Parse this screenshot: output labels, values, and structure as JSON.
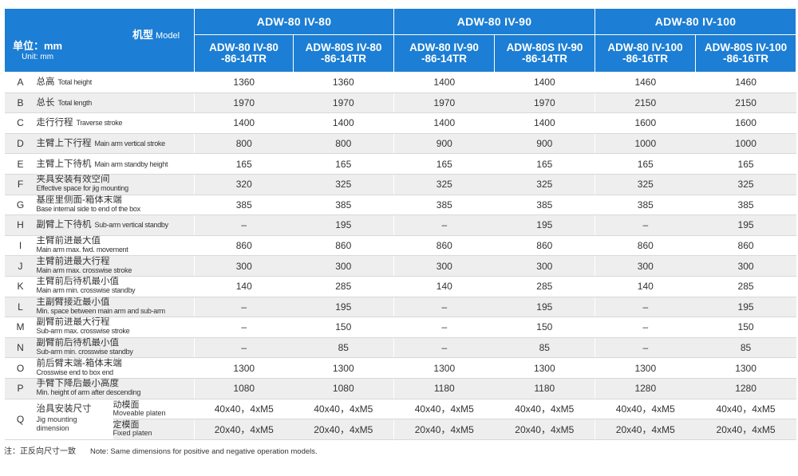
{
  "header": {
    "model_zh": "机型",
    "model_en": "Model",
    "unit_zh": "单位：mm",
    "unit_en": "Unit: mm",
    "groups": [
      "ADW-80 IV-80",
      "ADW-80 IV-90",
      "ADW-80 IV-100"
    ],
    "models": [
      [
        "ADW-80 IV-80",
        "-86-14TR"
      ],
      [
        "ADW-80S IV-80",
        "-86-14TR"
      ],
      [
        "ADW-80 IV-90",
        "-86-14TR"
      ],
      [
        "ADW-80S IV-90",
        "-86-14TR"
      ],
      [
        "ADW-80 IV-100",
        "-86-16TR"
      ],
      [
        "ADW-80S IV-100",
        "-86-16TR"
      ]
    ]
  },
  "rows": [
    {
      "id": "A",
      "zh": "总高",
      "en": "Total height",
      "values": [
        "1360",
        "1360",
        "1400",
        "1400",
        "1460",
        "1460"
      ]
    },
    {
      "id": "B",
      "zh": "总长",
      "en": "Total length",
      "values": [
        "1970",
        "1970",
        "1970",
        "1970",
        "2150",
        "2150"
      ]
    },
    {
      "id": "C",
      "zh": "走行行程",
      "en": "Traverse stroke",
      "values": [
        "1400",
        "1400",
        "1400",
        "1400",
        "1600",
        "1600"
      ]
    },
    {
      "id": "D",
      "zh": "主臂上下行程",
      "en": "Main arm vertical stroke",
      "values": [
        "800",
        "800",
        "900",
        "900",
        "1000",
        "1000"
      ]
    },
    {
      "id": "E",
      "zh": "主臂上下待机",
      "en": "Main arm standby height",
      "values": [
        "165",
        "165",
        "165",
        "165",
        "165",
        "165"
      ]
    },
    {
      "id": "F",
      "zh": "夹具安装有效空间",
      "en": "Effective space for jig mounting",
      "values": [
        "320",
        "325",
        "325",
        "325",
        "325",
        "325"
      ]
    },
    {
      "id": "G",
      "zh": "基座里侧面-箱体末端",
      "en": "Base internal side to end of the box",
      "values": [
        "385",
        "385",
        "385",
        "385",
        "385",
        "385"
      ]
    },
    {
      "id": "H",
      "zh": "副臂上下待机",
      "en": "Sub-arm vertical standby",
      "values": [
        "–",
        "195",
        "–",
        "195",
        "–",
        "195"
      ]
    },
    {
      "id": "I",
      "zh": "主臂前进最大值",
      "en": "Main arm max. fwd. movement",
      "values": [
        "860",
        "860",
        "860",
        "860",
        "860",
        "860"
      ]
    },
    {
      "id": "J",
      "zh": "主臂前进最大行程",
      "en": "Main arm max. crosswise stroke",
      "values": [
        "300",
        "300",
        "300",
        "300",
        "300",
        "300"
      ]
    },
    {
      "id": "K",
      "zh": "主臂前后待机最小值",
      "en": "Main arm min. crosswise standby",
      "values": [
        "140",
        "285",
        "140",
        "285",
        "140",
        "285"
      ]
    },
    {
      "id": "L",
      "zh": "主副臂接近最小值",
      "en": "Min. space between main arm and sub-arm",
      "values": [
        "–",
        "195",
        "–",
        "195",
        "–",
        "195"
      ]
    },
    {
      "id": "M",
      "zh": "副臂前进最大行程",
      "en": "Sub-arm max. crosswise stroke",
      "values": [
        "–",
        "150",
        "–",
        "150",
        "–",
        "150"
      ]
    },
    {
      "id": "N",
      "zh": "副臂前后待机最小值",
      "en": "Sub-arm min. crosswise standby",
      "values": [
        "–",
        "85",
        "–",
        "85",
        "–",
        "85"
      ]
    },
    {
      "id": "O",
      "zh": "前后臂末端-箱体末端",
      "en": "Crosswise end to box end",
      "values": [
        "1300",
        "1300",
        "1300",
        "1300",
        "1300",
        "1300"
      ]
    },
    {
      "id": "P",
      "zh": "手臂下降后最小高度",
      "en": "Min. height of arm after descending",
      "values": [
        "1080",
        "1080",
        "1180",
        "1180",
        "1280",
        "1280"
      ]
    }
  ],
  "q_row": {
    "id": "Q",
    "zh": "治具安装尺寸",
    "en_line1": "Jig mounting",
    "en_line2": "dimension",
    "moveable": {
      "zh": "动模面",
      "en": "Moveable platen",
      "values": [
        "40x40，4xM5",
        "40x40，4xM5",
        "40x40，4xM5",
        "40x40，4xM5",
        "40x40，4xM5",
        "40x40，4xM5"
      ]
    },
    "fixed": {
      "zh": "定模面",
      "en": "Fixed platen",
      "values": [
        "20x40，4xM5",
        "20x40，4xM5",
        "20x40，4xM5",
        "20x40，4xM5",
        "20x40，4xM5",
        "20x40，4xM5"
      ]
    }
  },
  "note": {
    "zh": "注：正反向尺寸一致",
    "en": "Note: Same dimensions for positive and negative operation models."
  }
}
